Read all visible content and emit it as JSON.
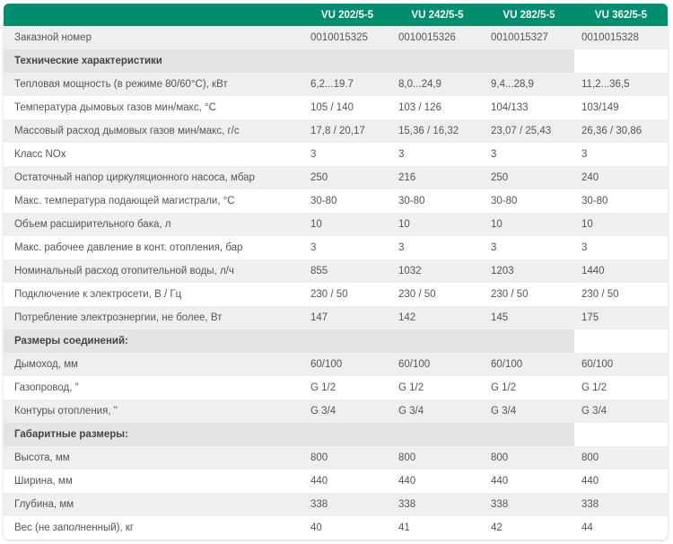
{
  "header": {
    "models": [
      "VU 202/5-5",
      "VU 242/5-5",
      "VU 282/5-5",
      "VU 362/5-5"
    ]
  },
  "rows": [
    {
      "type": "data",
      "label": "Заказной номер",
      "values": [
        "0010015325",
        "0010015326",
        "0010015327",
        "0010015328"
      ]
    },
    {
      "type": "section",
      "label": "Технические характеристики"
    },
    {
      "type": "data",
      "label": "Тепловая мощность (в режиме 80/60°С), кВт",
      "values": [
        "6,2...19.7",
        "8,0...24,9",
        "9,4...28,9",
        "11,2...36,5"
      ]
    },
    {
      "type": "data",
      "label": "Температура дымовых газов мин/макс, °С",
      "values": [
        "105 / 140",
        "103 / 126",
        "104/133",
        "103/149"
      ]
    },
    {
      "type": "data",
      "label": "Массовый расход дымовых газов мин/макс, г/с",
      "values": [
        "17,8 / 20,17",
        "15,36 / 16,32",
        "23,07 / 25,43",
        "26,36 / 30,86"
      ]
    },
    {
      "type": "data",
      "label": "Класс NOx",
      "values": [
        "3",
        "3",
        "3",
        "3"
      ]
    },
    {
      "type": "data",
      "label": "Остаточный напор циркуляционного насоса, мбар",
      "values": [
        "250",
        "216",
        "250",
        "240"
      ]
    },
    {
      "type": "data",
      "label": "Макс. температура подающей магистрали, °С",
      "values": [
        "30-80",
        "30-80",
        "30-80",
        "30-80"
      ]
    },
    {
      "type": "data",
      "label": "Объем расширительного бака, л",
      "values": [
        "10",
        "10",
        "10",
        "10"
      ]
    },
    {
      "type": "data",
      "label": "Макс. рабочее давление в конт. отопления, бар",
      "values": [
        "3",
        "3",
        "3",
        "3"
      ]
    },
    {
      "type": "data",
      "label": "Номинальный расход отопительной воды, л/ч",
      "values": [
        "855",
        "1032",
        "1203",
        "1440"
      ]
    },
    {
      "type": "data",
      "label": "Подключение к электросети, В / Гц",
      "values": [
        "230 / 50",
        "230 / 50",
        "230 / 50",
        "230 / 50"
      ]
    },
    {
      "type": "data",
      "label": "Потребление электроэнергии, не более, Вт",
      "values": [
        "147",
        "142",
        "145",
        "175"
      ]
    },
    {
      "type": "section",
      "label": "Размеры соединений:"
    },
    {
      "type": "data",
      "label": "Дымоход, мм",
      "values": [
        "60/100",
        "60/100",
        "60/100",
        "60/100"
      ]
    },
    {
      "type": "data",
      "label": "Газопровод, \"",
      "values": [
        "G 1/2",
        "G 1/2",
        "G 1/2",
        "G 1/2"
      ]
    },
    {
      "type": "data",
      "label": "Контуры отопления, \"",
      "values": [
        "G 3/4",
        "G 3/4",
        "G 3/4",
        "G 3/4"
      ]
    },
    {
      "type": "section",
      "label": "Габаритные размеры:"
    },
    {
      "type": "data",
      "label": "Высота, мм",
      "values": [
        "800",
        "800",
        "800",
        "800"
      ]
    },
    {
      "type": "data",
      "label": "Ширина, мм",
      "values": [
        "440",
        "440",
        "440",
        "440"
      ]
    },
    {
      "type": "data",
      "label": "Глубина, мм",
      "values": [
        "338",
        "338",
        "338",
        "338"
      ]
    },
    {
      "type": "data",
      "label": "Вес (не заполненный), кг",
      "values": [
        "40",
        "41",
        "42",
        "44"
      ]
    }
  ]
}
